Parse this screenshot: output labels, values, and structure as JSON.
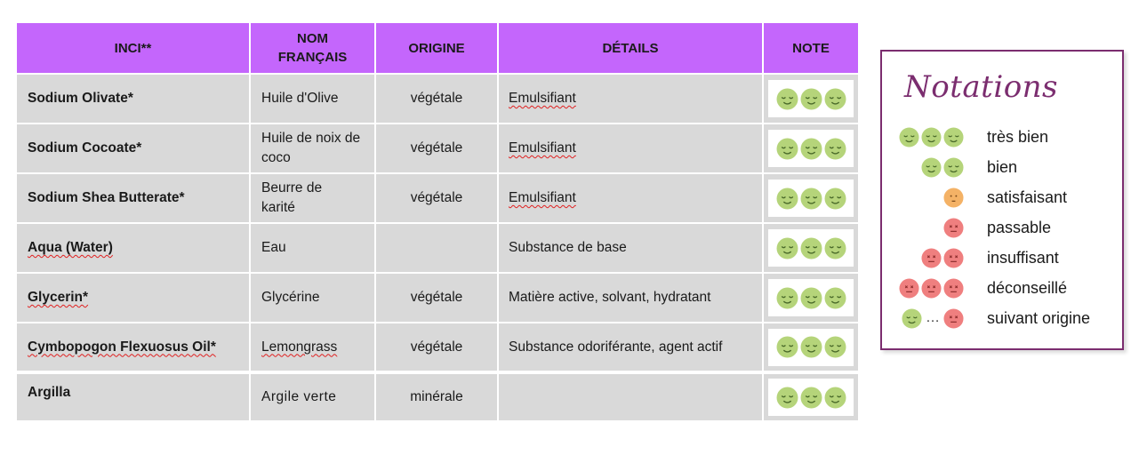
{
  "table": {
    "headers": {
      "inci": "INCI**",
      "nom": "NOM FRANÇAIS",
      "origine": "ORIGINE",
      "details": "DÉTAILS",
      "note": "NOTE"
    },
    "rows": [
      {
        "inci": "Sodium Olivate*",
        "nom": "Huile d'Olive",
        "origine": "végétale",
        "details": "Emulsifiant",
        "note": "très bien"
      },
      {
        "inci": "Sodium Cocoate*",
        "nom": "Huile de noix de coco",
        "origine": "végétale",
        "details": "Emulsifiant",
        "note": "très bien"
      },
      {
        "inci": "Sodium Shea Butterate*",
        "nom": "Beurre de karité",
        "origine": "végétale",
        "details": "Emulsifiant",
        "note": "très bien"
      },
      {
        "inci": "Aqua (Water)",
        "nom": "Eau",
        "origine": "",
        "details": "Substance de base",
        "note": "très bien"
      },
      {
        "inci": "Glycerin*",
        "nom": "Glycérine",
        "origine": "végétale",
        "details": "Matière active, solvant, hydratant",
        "note": "très bien"
      },
      {
        "inci": "Cymbopogon Flexuosus Oil*",
        "nom": "Lemongrass",
        "origine": "végétale",
        "details": "Substance odoriférante, agent actif",
        "note": "très bien"
      },
      {
        "inci": "Argilla",
        "nom": "Argile verte",
        "origine": "minérale",
        "details": "",
        "note": "très bien"
      }
    ]
  },
  "legend": {
    "title": "Notations",
    "items": [
      {
        "label": "très bien",
        "icons": [
          "green-smile-face",
          "green-smile-face",
          "green-smile-face"
        ]
      },
      {
        "label": "bien",
        "icons": [
          "green-smile-face",
          "green-smile-face"
        ]
      },
      {
        "label": "satisfaisant",
        "icons": [
          "orange-neutral-face"
        ]
      },
      {
        "label": "passable",
        "icons": [
          "red-cross-face"
        ]
      },
      {
        "label": "insuffisant",
        "icons": [
          "red-cross-face",
          "red-cross-face"
        ]
      },
      {
        "label": "déconseillé",
        "icons": [
          "red-cross-face",
          "red-cross-face",
          "red-cross-face"
        ]
      },
      {
        "label": "suivant origine",
        "icons": [
          "green-smile-face",
          "ellipsis",
          "red-cross-face"
        ]
      }
    ]
  },
  "colors": {
    "header_bg": "#c466fc",
    "row_bg": "#d9d9d9",
    "good_face": "#b5d47a",
    "neutral_face": "#f4b266",
    "bad_face": "#ef7f7f",
    "legend_border": "#7b2d6f"
  }
}
